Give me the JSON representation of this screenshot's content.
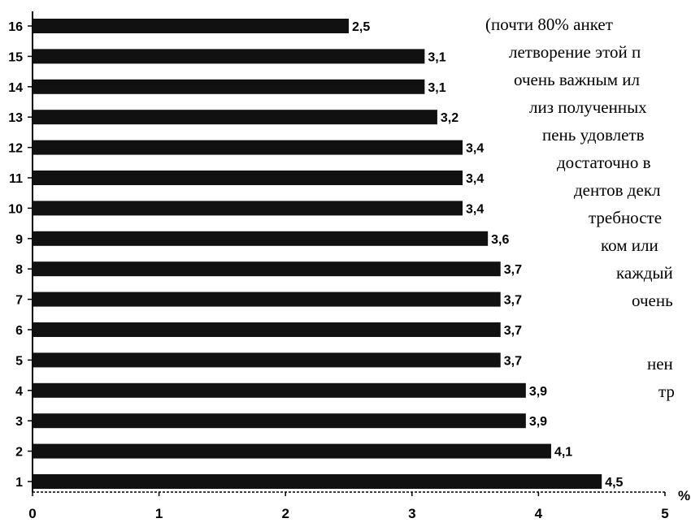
{
  "chart_data": {
    "type": "bar",
    "orientation": "horizontal",
    "categories": [
      "1",
      "2",
      "3",
      "4",
      "5",
      "6",
      "7",
      "8",
      "9",
      "10",
      "11",
      "12",
      "13",
      "14",
      "15",
      "16"
    ],
    "values": [
      4.5,
      4.1,
      3.9,
      3.9,
      3.7,
      3.7,
      3.7,
      3.7,
      3.6,
      3.4,
      3.4,
      3.4,
      3.2,
      3.1,
      3.1,
      2.5
    ],
    "value_labels": [
      "4,5",
      "4,1",
      "3,9",
      "3,9",
      "3,7",
      "3,7",
      "3,7",
      "3,7",
      "3,6",
      "3,4",
      "3,4",
      "3,4",
      "3,2",
      "3,1",
      "3,1",
      "2,5"
    ],
    "xlim": [
      0,
      5
    ],
    "xticks": [
      "0",
      "1",
      "2",
      "3",
      "4",
      "5"
    ],
    "x_unit_label": "%",
    "title": "",
    "xlabel": "",
    "ylabel": "",
    "grid": false,
    "bar_color": "#111111"
  },
  "side_text": {
    "lines": [
      "(почти 80% анкет",
      "летворение этой п",
      "очень важным ил",
      "лиз полученных",
      "пень удовлетв",
      "достаточно в",
      "дентов декл",
      "требносте",
      "ком или",
      "каждый",
      "очень",
      "нен",
      "тр"
    ]
  }
}
